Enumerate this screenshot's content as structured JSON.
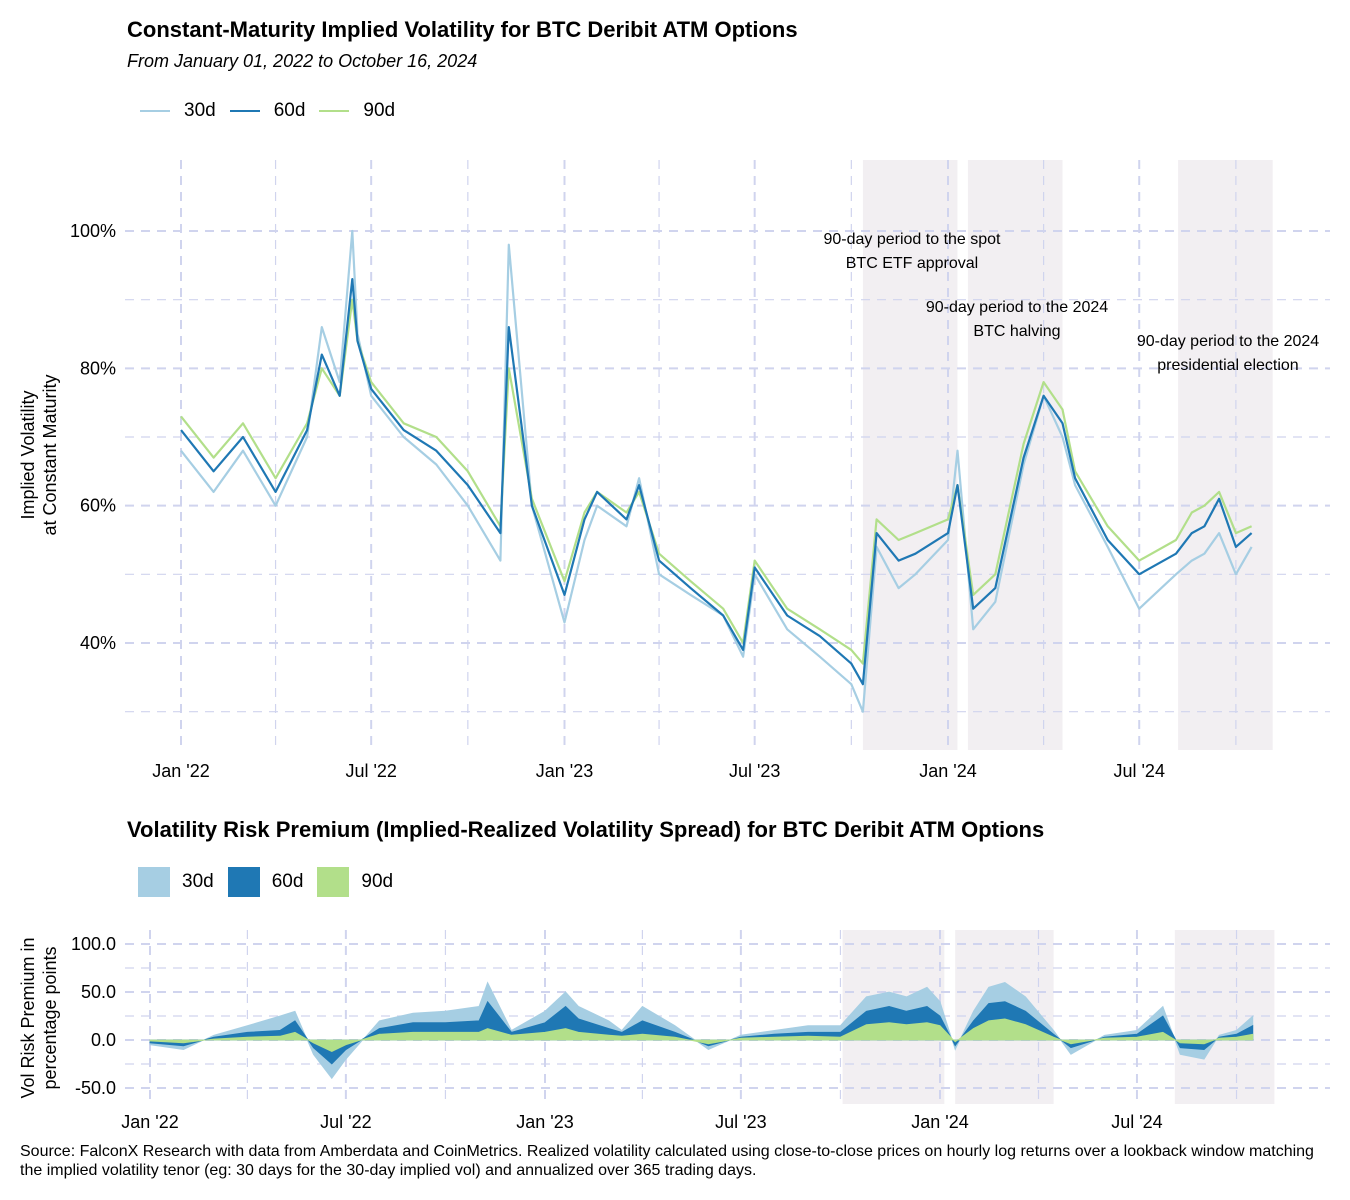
{
  "colors": {
    "s30": "#a6cee3",
    "s60": "#1f78b4",
    "s90": "#b2df8a",
    "shade": "#f2eff2",
    "grid": "#d0d4ee"
  },
  "chart_data": [
    {
      "type": "line",
      "title": "Constant-Maturity Implied Volatility for BTC Deribit ATM Options",
      "subtitle": "From January 01, 2022 to October 16, 2024",
      "xlabel": "",
      "ylabel_lines": [
        "Implied Volatility",
        "at Constant Maturity"
      ],
      "x_ticks": [
        "Jan '22",
        "Jul '22",
        "Jan '23",
        "Jul '23",
        "Jan '24",
        "Jul '24"
      ],
      "y_ticks": [
        "40%",
        "60%",
        "80%",
        "100%"
      ],
      "ylim": [
        25,
        110
      ],
      "legend_position": "top-left",
      "shaded_periods": [
        {
          "start": "2023-10-12",
          "end": "2024-01-10",
          "label_lines": [
            "90-day period to the spot",
            "BTC ETF approval"
          ]
        },
        {
          "start": "2024-01-20",
          "end": "2024-04-19",
          "label_lines": [
            "90-day period to the 2024",
            "BTC halving"
          ]
        },
        {
          "start": "2024-08-07",
          "end": "2024-11-05",
          "label_lines": [
            "90-day period to the 2024",
            "presidential election"
          ]
        }
      ],
      "dates": [
        "2022-01-01",
        "2022-02-01",
        "2022-03-01",
        "2022-04-01",
        "2022-05-01",
        "2022-05-15",
        "2022-06-01",
        "2022-06-13",
        "2022-06-18",
        "2022-07-01",
        "2022-08-01",
        "2022-09-01",
        "2022-10-01",
        "2022-11-01",
        "2022-11-09",
        "2022-12-01",
        "2023-01-01",
        "2023-01-20",
        "2023-02-01",
        "2023-03-01",
        "2023-03-13",
        "2023-04-01",
        "2023-05-01",
        "2023-06-01",
        "2023-06-20",
        "2023-07-01",
        "2023-08-01",
        "2023-09-01",
        "2023-10-01",
        "2023-10-12",
        "2023-10-25",
        "2023-11-15",
        "2023-12-01",
        "2024-01-01",
        "2024-01-10",
        "2024-01-25",
        "2024-02-15",
        "2024-03-13",
        "2024-04-01",
        "2024-04-19",
        "2024-05-01",
        "2024-06-01",
        "2024-07-01",
        "2024-08-05",
        "2024-08-20",
        "2024-09-01",
        "2024-09-15",
        "2024-10-01",
        "2024-10-16"
      ],
      "series": [
        {
          "name": "30d",
          "values": [
            68,
            62,
            68,
            60,
            70,
            86,
            78,
            100,
            85,
            76,
            70,
            66,
            60,
            52,
            98,
            60,
            43,
            55,
            60,
            57,
            64,
            50,
            47,
            44,
            38,
            50,
            42,
            38,
            34,
            30,
            54,
            48,
            50,
            55,
            68,
            42,
            46,
            66,
            76,
            70,
            63,
            54,
            45,
            50,
            52,
            53,
            56,
            50,
            54
          ]
        },
        {
          "name": "60d",
          "values": [
            71,
            65,
            70,
            62,
            71,
            82,
            76,
            93,
            84,
            77,
            71,
            68,
            63,
            56,
            86,
            60,
            47,
            58,
            62,
            58,
            63,
            52,
            48,
            44,
            39,
            51,
            44,
            41,
            37,
            34,
            56,
            52,
            53,
            56,
            63,
            45,
            48,
            67,
            76,
            72,
            64,
            55,
            50,
            53,
            56,
            57,
            61,
            54,
            56
          ]
        },
        {
          "name": "90d",
          "values": [
            73,
            67,
            72,
            64,
            72,
            80,
            76,
            90,
            84,
            78,
            72,
            70,
            65,
            57,
            80,
            61,
            49,
            59,
            62,
            59,
            62,
            53,
            49,
            45,
            40,
            52,
            45,
            42,
            39,
            37,
            58,
            55,
            56,
            58,
            63,
            47,
            50,
            69,
            78,
            74,
            65,
            57,
            52,
            55,
            59,
            60,
            62,
            56,
            57
          ]
        }
      ]
    },
    {
      "type": "area",
      "title": "Volatility Risk Premium (Implied-Realized Volatility Spread) for BTC Deribit ATM Options",
      "xlabel": "",
      "ylabel_lines": [
        "Vol Risk Premium in",
        "percentage points"
      ],
      "x_ticks": [
        "Jan '22",
        "Jul '22",
        "Jan '23",
        "Jul '23",
        "Jan '24",
        "Jul '24"
      ],
      "y_ticks": [
        "-50.0",
        "0.0",
        "50.0",
        "100.0"
      ],
      "ylim": [
        -60,
        110
      ],
      "legend_position": "top-left",
      "dates": [
        "2022-01-01",
        "2022-02-01",
        "2022-03-01",
        "2022-04-01",
        "2022-05-01",
        "2022-05-15",
        "2022-06-01",
        "2022-06-18",
        "2022-07-01",
        "2022-08-01",
        "2022-09-01",
        "2022-10-01",
        "2022-11-01",
        "2022-11-09",
        "2022-12-01",
        "2023-01-01",
        "2023-01-20",
        "2023-02-01",
        "2023-03-01",
        "2023-03-13",
        "2023-04-01",
        "2023-05-01",
        "2023-06-01",
        "2023-07-01",
        "2023-08-01",
        "2023-09-01",
        "2023-10-01",
        "2023-10-25",
        "2023-11-15",
        "2023-12-01",
        "2023-12-20",
        "2024-01-01",
        "2024-01-15",
        "2024-02-01",
        "2024-02-15",
        "2024-03-01",
        "2024-03-20",
        "2024-04-15",
        "2024-05-01",
        "2024-06-01",
        "2024-07-01",
        "2024-07-25",
        "2024-08-10",
        "2024-09-01",
        "2024-09-15",
        "2024-10-01",
        "2024-10-16"
      ],
      "series": [
        {
          "name": "30d",
          "values": [
            -5,
            -10,
            5,
            15,
            25,
            30,
            -15,
            -40,
            -20,
            20,
            28,
            30,
            35,
            60,
            10,
            30,
            50,
            35,
            20,
            10,
            35,
            15,
            -10,
            5,
            10,
            15,
            15,
            45,
            50,
            45,
            55,
            40,
            -10,
            30,
            55,
            60,
            45,
            10,
            -15,
            5,
            10,
            35,
            -15,
            -20,
            5,
            10,
            25
          ]
        },
        {
          "name": "60d",
          "values": [
            -3,
            -6,
            3,
            8,
            10,
            20,
            -8,
            -25,
            -10,
            12,
            18,
            18,
            20,
            40,
            8,
            18,
            35,
            22,
            12,
            8,
            20,
            8,
            -6,
            3,
            6,
            8,
            8,
            30,
            35,
            30,
            35,
            25,
            -6,
            20,
            38,
            40,
            30,
            6,
            -8,
            3,
            6,
            25,
            -8,
            -10,
            3,
            6,
            15
          ]
        },
        {
          "name": "90d",
          "values": [
            -1,
            -3,
            1,
            3,
            4,
            8,
            -3,
            -12,
            -5,
            6,
            8,
            8,
            8,
            12,
            5,
            8,
            12,
            8,
            5,
            4,
            6,
            3,
            -4,
            2,
            3,
            4,
            3,
            16,
            18,
            16,
            18,
            15,
            -2,
            12,
            20,
            22,
            16,
            3,
            -4,
            2,
            3,
            8,
            -3,
            -4,
            2,
            3,
            6
          ]
        }
      ]
    }
  ],
  "legend": {
    "labels": [
      "30d",
      "60d",
      "90d"
    ]
  },
  "source_note": "Source: FalconX Research with data from Amberdata and CoinMetrics. Realized volatility calculated using close-to-close prices on hourly log returns over a lookback window matching the implied volatility tenor (eg: 30 days for the 30-day implied vol) and annualized over 365 trading days."
}
